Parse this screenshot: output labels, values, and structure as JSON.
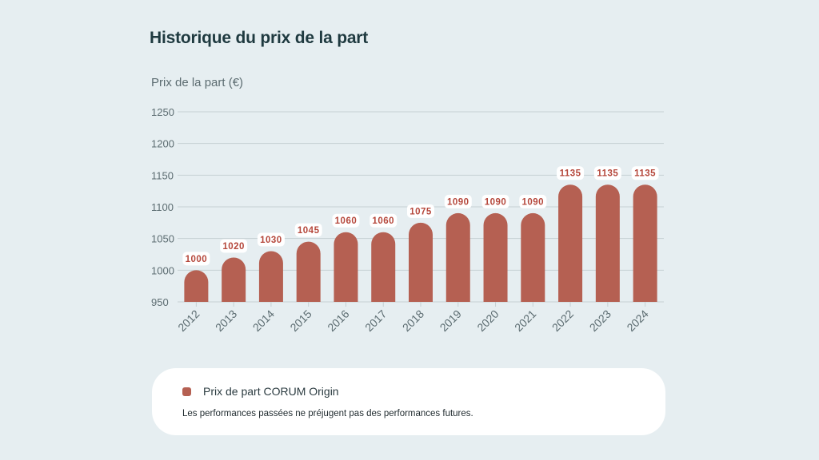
{
  "title": "Historique du prix de la part",
  "chart_data": {
    "type": "bar",
    "ylabel": "Prix de la part (€)",
    "ylim": [
      950,
      1250
    ],
    "yticks": [
      950,
      1000,
      1050,
      1100,
      1150,
      1200,
      1250
    ],
    "grid": true,
    "categories": [
      "2012",
      "2013",
      "2014",
      "2015",
      "2016",
      "2017",
      "2018",
      "2019",
      "2020",
      "2021",
      "2022",
      "2023",
      "2024"
    ],
    "series": [
      {
        "name": "Prix de part CORUM Origin",
        "values": [
          1000,
          1020,
          1030,
          1045,
          1060,
          1060,
          1075,
          1090,
          1090,
          1090,
          1135,
          1135,
          1135
        ],
        "data_labels": [
          "1000",
          "1020",
          "1030",
          "1045",
          "1060",
          "1060",
          "1075",
          "1090",
          "1090",
          "1090",
          "1135",
          "1135",
          "1135"
        ]
      }
    ],
    "colors": {
      "bar": "#b56052",
      "label_text": "#b5473b",
      "grid": "#c6d0d3",
      "tick_text": "#5c6c71"
    }
  },
  "legend": {
    "label": "Prix de part CORUM Origin",
    "note": "Les performances passées ne préjugent pas des performances futures."
  }
}
